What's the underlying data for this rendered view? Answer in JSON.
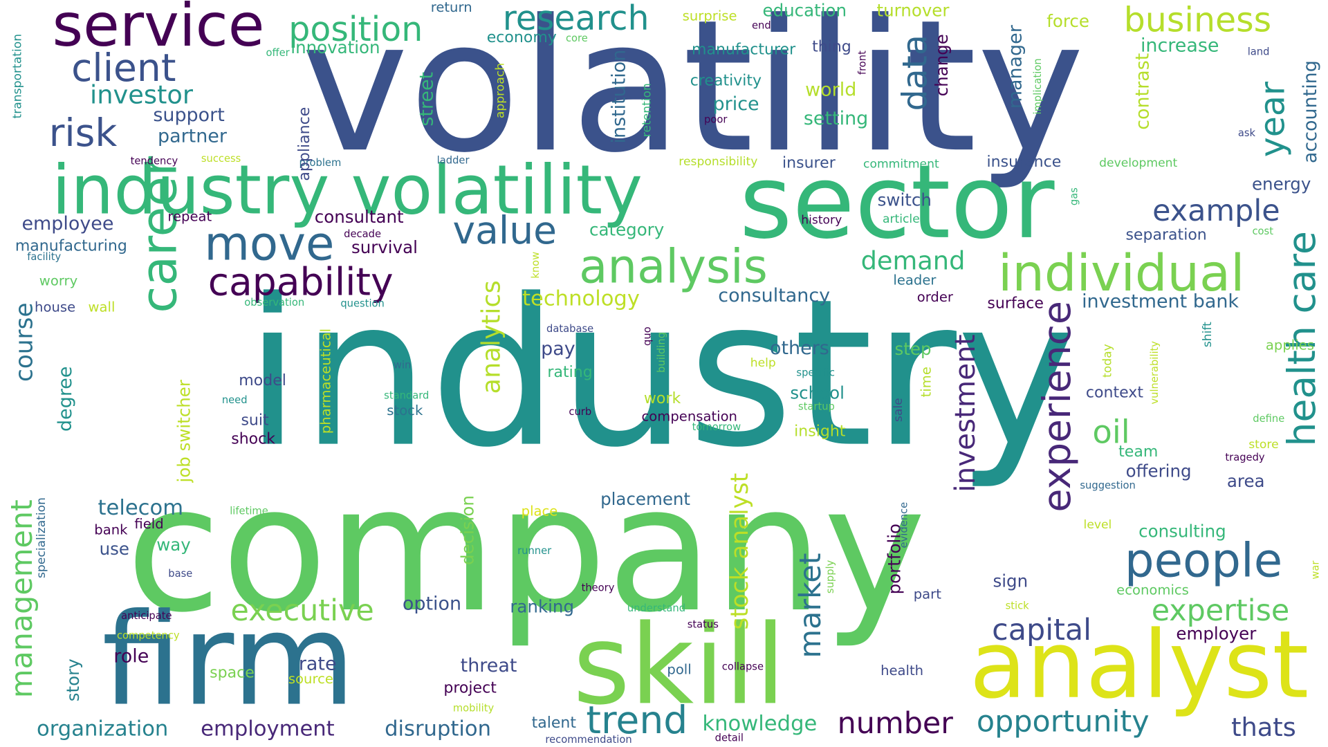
{
  "word_cloud": {
    "words": [
      {
        "text": "industry",
        "color": "#21918c"
      },
      {
        "text": "volatility",
        "color": "#3b528b"
      },
      {
        "text": "company",
        "color": "#5ec962"
      },
      {
        "text": "sector",
        "color": "#35b779"
      },
      {
        "text": "firm",
        "color": "#2c728e"
      },
      {
        "text": "skill",
        "color": "#7ad151"
      },
      {
        "text": "analyst",
        "color": "#dde318"
      },
      {
        "text": "industry volatility",
        "color": "#35b779"
      },
      {
        "text": "service",
        "color": "#440154"
      },
      {
        "text": "position",
        "color": "#35b779"
      },
      {
        "text": "research",
        "color": "#21918c"
      },
      {
        "text": "business",
        "color": "#b5de2b"
      },
      {
        "text": "client",
        "color": "#3b528b"
      },
      {
        "text": "risk",
        "color": "#3b528b"
      },
      {
        "text": "investor",
        "color": "#21918c"
      },
      {
        "text": "support",
        "color": "#3b528b"
      },
      {
        "text": "partner",
        "color": "#31688e"
      },
      {
        "text": "career",
        "color": "#35b779"
      },
      {
        "text": "move",
        "color": "#31688e"
      },
      {
        "text": "capability",
        "color": "#440154"
      },
      {
        "text": "analysis",
        "color": "#5ec962"
      },
      {
        "text": "value",
        "color": "#31688e"
      },
      {
        "text": "individual",
        "color": "#7ad151"
      },
      {
        "text": "example",
        "color": "#3b528b"
      },
      {
        "text": "health care",
        "color": "#21918c"
      },
      {
        "text": "year",
        "color": "#21918c"
      },
      {
        "text": "data",
        "color": "#31688e"
      },
      {
        "text": "people",
        "color": "#31688e"
      },
      {
        "text": "experience",
        "color": "#482878"
      },
      {
        "text": "expertise",
        "color": "#5ec962"
      },
      {
        "text": "oil",
        "color": "#5ec962"
      },
      {
        "text": "capital",
        "color": "#3e4a89"
      },
      {
        "text": "trend",
        "color": "#26828e"
      },
      {
        "text": "number",
        "color": "#440154"
      },
      {
        "text": "opportunity",
        "color": "#26828e"
      },
      {
        "text": "thats",
        "color": "#3e4a89"
      },
      {
        "text": "management",
        "color": "#5ec962"
      },
      {
        "text": "executive",
        "color": "#7ad151"
      },
      {
        "text": "market",
        "color": "#2c728e"
      },
      {
        "text": "investment",
        "color": "#482878"
      },
      {
        "text": "analytics",
        "color": "#b5de2b"
      },
      {
        "text": "stock analyst",
        "color": "#bddf26"
      },
      {
        "text": "course",
        "color": "#2c728e"
      },
      {
        "text": "telecom",
        "color": "#2c728e"
      },
      {
        "text": "organization",
        "color": "#26828e"
      },
      {
        "text": "employment",
        "color": "#482878"
      },
      {
        "text": "disruption",
        "color": "#31688e"
      },
      {
        "text": "knowledge",
        "color": "#35b779"
      },
      {
        "text": "education",
        "color": "#35b779"
      },
      {
        "text": "turnover",
        "color": "#b5de2b"
      },
      {
        "text": "force",
        "color": "#b5de2b"
      },
      {
        "text": "increase",
        "color": "#35b779"
      },
      {
        "text": "economy",
        "color": "#21918c"
      },
      {
        "text": "innovation",
        "color": "#35b779"
      },
      {
        "text": "manufacturer",
        "color": "#21918c"
      },
      {
        "text": "thing",
        "color": "#3e4a89"
      },
      {
        "text": "creativity",
        "color": "#21918c"
      },
      {
        "text": "world",
        "color": "#b5de2b"
      },
      {
        "text": "price",
        "color": "#21918c"
      },
      {
        "text": "setting",
        "color": "#35b779"
      },
      {
        "text": "street",
        "color": "#35b779"
      },
      {
        "text": "institution",
        "color": "#31688e"
      },
      {
        "text": "change",
        "color": "#440154"
      },
      {
        "text": "manager",
        "color": "#31688e"
      },
      {
        "text": "contrast",
        "color": "#b5de2b"
      },
      {
        "text": "accounting",
        "color": "#31688e"
      },
      {
        "text": "energy",
        "color": "#3b528b"
      },
      {
        "text": "insurance",
        "color": "#3b528b"
      },
      {
        "text": "development",
        "color": "#5ec962"
      },
      {
        "text": "commitment",
        "color": "#35b779"
      },
      {
        "text": "insurer",
        "color": "#3b528b"
      },
      {
        "text": "responsibility",
        "color": "#b5de2b"
      },
      {
        "text": "switch",
        "color": "#3b528b"
      },
      {
        "text": "history",
        "color": "#440154"
      },
      {
        "text": "article",
        "color": "#35b779"
      },
      {
        "text": "separation",
        "color": "#3b528b"
      },
      {
        "text": "consultant",
        "color": "#440154"
      },
      {
        "text": "survival",
        "color": "#440154"
      },
      {
        "text": "category",
        "color": "#35b779"
      },
      {
        "text": "employee",
        "color": "#3e4a89"
      },
      {
        "text": "manufacturing",
        "color": "#31688e"
      },
      {
        "text": "repeat",
        "color": "#440154"
      },
      {
        "text": "demand",
        "color": "#35b779"
      },
      {
        "text": "consultancy",
        "color": "#31688e"
      },
      {
        "text": "leader",
        "color": "#2c728e"
      },
      {
        "text": "order",
        "color": "#440154"
      },
      {
        "text": "surface",
        "color": "#440154"
      },
      {
        "text": "investment bank",
        "color": "#31688e"
      },
      {
        "text": "technology",
        "color": "#bddf26"
      },
      {
        "text": "others",
        "color": "#31688e"
      },
      {
        "text": "step",
        "color": "#5ec962"
      },
      {
        "text": "pay",
        "color": "#3e4a89"
      },
      {
        "text": "rating",
        "color": "#35b779"
      },
      {
        "text": "school",
        "color": "#21918c"
      },
      {
        "text": "work",
        "color": "#b5de2b"
      },
      {
        "text": "compensation",
        "color": "#440154"
      },
      {
        "text": "insight",
        "color": "#b5de2b"
      },
      {
        "text": "model",
        "color": "#3e4a89"
      },
      {
        "text": "suit",
        "color": "#3e4a89"
      },
      {
        "text": "shock",
        "color": "#440154"
      },
      {
        "text": "degree",
        "color": "#21918c"
      },
      {
        "text": "job switcher",
        "color": "#bddf26"
      },
      {
        "text": "context",
        "color": "#3e4a89"
      },
      {
        "text": "team",
        "color": "#35b779"
      },
      {
        "text": "offering",
        "color": "#3e4a89"
      },
      {
        "text": "area",
        "color": "#3e4a89"
      },
      {
        "text": "placement",
        "color": "#31688e"
      },
      {
        "text": "field",
        "color": "#440154"
      },
      {
        "text": "bank",
        "color": "#440154"
      },
      {
        "text": "way",
        "color": "#35b779"
      },
      {
        "text": "use",
        "color": "#3b528b"
      },
      {
        "text": "decision",
        "color": "#7ad151"
      },
      {
        "text": "sign",
        "color": "#3e4a89"
      },
      {
        "text": "portfolio",
        "color": "#440154"
      },
      {
        "text": "part",
        "color": "#3e4a89"
      },
      {
        "text": "option",
        "color": "#3b528b"
      },
      {
        "text": "ranking",
        "color": "#31688e"
      },
      {
        "text": "role",
        "color": "#440154"
      },
      {
        "text": "rate",
        "color": "#3e4a89"
      },
      {
        "text": "threat",
        "color": "#3e4a89"
      },
      {
        "text": "project",
        "color": "#440154"
      },
      {
        "text": "poll",
        "color": "#31688e"
      },
      {
        "text": "health",
        "color": "#3e4a89"
      },
      {
        "text": "employer",
        "color": "#440154"
      },
      {
        "text": "consulting",
        "color": "#35b779"
      },
      {
        "text": "story",
        "color": "#26828e"
      },
      {
        "text": "space",
        "color": "#7ad151"
      },
      {
        "text": "source",
        "color": "#bddf26"
      },
      {
        "text": "talent",
        "color": "#31688e"
      },
      {
        "text": "economics",
        "color": "#5ec962"
      },
      {
        "text": "return",
        "color": "#31688e"
      },
      {
        "text": "surprise",
        "color": "#bddf26"
      },
      {
        "text": "end",
        "color": "#440154"
      },
      {
        "text": "core",
        "color": "#5ec962"
      },
      {
        "text": "offer",
        "color": "#35b779"
      },
      {
        "text": "land",
        "color": "#3e4a89"
      },
      {
        "text": "front",
        "color": "#440154"
      },
      {
        "text": "implication",
        "color": "#5ec962"
      },
      {
        "text": "approach",
        "color": "#bddf26"
      },
      {
        "text": "retention",
        "color": "#35b779"
      },
      {
        "text": "transportation",
        "color": "#21918c"
      },
      {
        "text": "tendency",
        "color": "#440154"
      },
      {
        "text": "success",
        "color": "#bddf26"
      },
      {
        "text": "problem",
        "color": "#2c728e"
      },
      {
        "text": "ladder",
        "color": "#31688e"
      },
      {
        "text": "poor",
        "color": "#440154"
      },
      {
        "text": "ask",
        "color": "#3e4a89"
      },
      {
        "text": "appliance",
        "color": "#3e4a89"
      },
      {
        "text": "decade",
        "color": "#440154"
      },
      {
        "text": "gas",
        "color": "#35b779"
      },
      {
        "text": "cost",
        "color": "#5ec962"
      },
      {
        "text": "facility",
        "color": "#2c728e"
      },
      {
        "text": "worry",
        "color": "#5ec962"
      },
      {
        "text": "house",
        "color": "#3e4a89"
      },
      {
        "text": "wall",
        "color": "#bddf26"
      },
      {
        "text": "observation",
        "color": "#35b779"
      },
      {
        "text": "question",
        "color": "#21918c"
      },
      {
        "text": "know",
        "color": "#bddf26"
      },
      {
        "text": "database",
        "color": "#3e4a89"
      },
      {
        "text": "quo",
        "color": "#440154"
      },
      {
        "text": "building",
        "color": "#5ec962"
      },
      {
        "text": "vulnerability",
        "color": "#bddf26"
      },
      {
        "text": "today",
        "color": "#b5de2b"
      },
      {
        "text": "shift",
        "color": "#21918c"
      },
      {
        "text": "applies",
        "color": "#7ad151"
      },
      {
        "text": "help",
        "color": "#bddf26"
      },
      {
        "text": "specific",
        "color": "#21918c"
      },
      {
        "text": "time",
        "color": "#b5de2b"
      },
      {
        "text": "win",
        "color": "#31688e"
      },
      {
        "text": "standard",
        "color": "#35b779"
      },
      {
        "text": "stock",
        "color": "#2c728e"
      },
      {
        "text": "need",
        "color": "#21918c"
      },
      {
        "text": "startup",
        "color": "#5ec962"
      },
      {
        "text": "curb",
        "color": "#440154"
      },
      {
        "text": "tomorrow",
        "color": "#35b779"
      },
      {
        "text": "pharmaceutical",
        "color": "#bddf26"
      },
      {
        "text": "sale",
        "color": "#3e4a89"
      },
      {
        "text": "define",
        "color": "#5ec962"
      },
      {
        "text": "store",
        "color": "#bddf26"
      },
      {
        "text": "tragedy",
        "color": "#440154"
      },
      {
        "text": "suggestion",
        "color": "#31688e"
      },
      {
        "text": "lifetime",
        "color": "#5ec962"
      },
      {
        "text": "place",
        "color": "#dde318"
      },
      {
        "text": "evidence",
        "color": "#31688e"
      },
      {
        "text": "level",
        "color": "#bddf26"
      },
      {
        "text": "specialization",
        "color": "#31688e"
      },
      {
        "text": "runner",
        "color": "#21918c"
      },
      {
        "text": "base",
        "color": "#3e4a89"
      },
      {
        "text": "theory",
        "color": "#440154"
      },
      {
        "text": "supply",
        "color": "#7ad151"
      },
      {
        "text": "anticipate",
        "color": "#440154"
      },
      {
        "text": "understand",
        "color": "#35b779"
      },
      {
        "text": "stick",
        "color": "#bddf26"
      },
      {
        "text": "war",
        "color": "#bddf26"
      },
      {
        "text": "status",
        "color": "#440154"
      },
      {
        "text": "competency",
        "color": "#bddf26"
      },
      {
        "text": "collapse",
        "color": "#440154"
      },
      {
        "text": "mobility",
        "color": "#b5de2b"
      },
      {
        "text": "recommendation",
        "color": "#3e4a89"
      },
      {
        "text": "detail",
        "color": "#440154"
      }
    ]
  }
}
